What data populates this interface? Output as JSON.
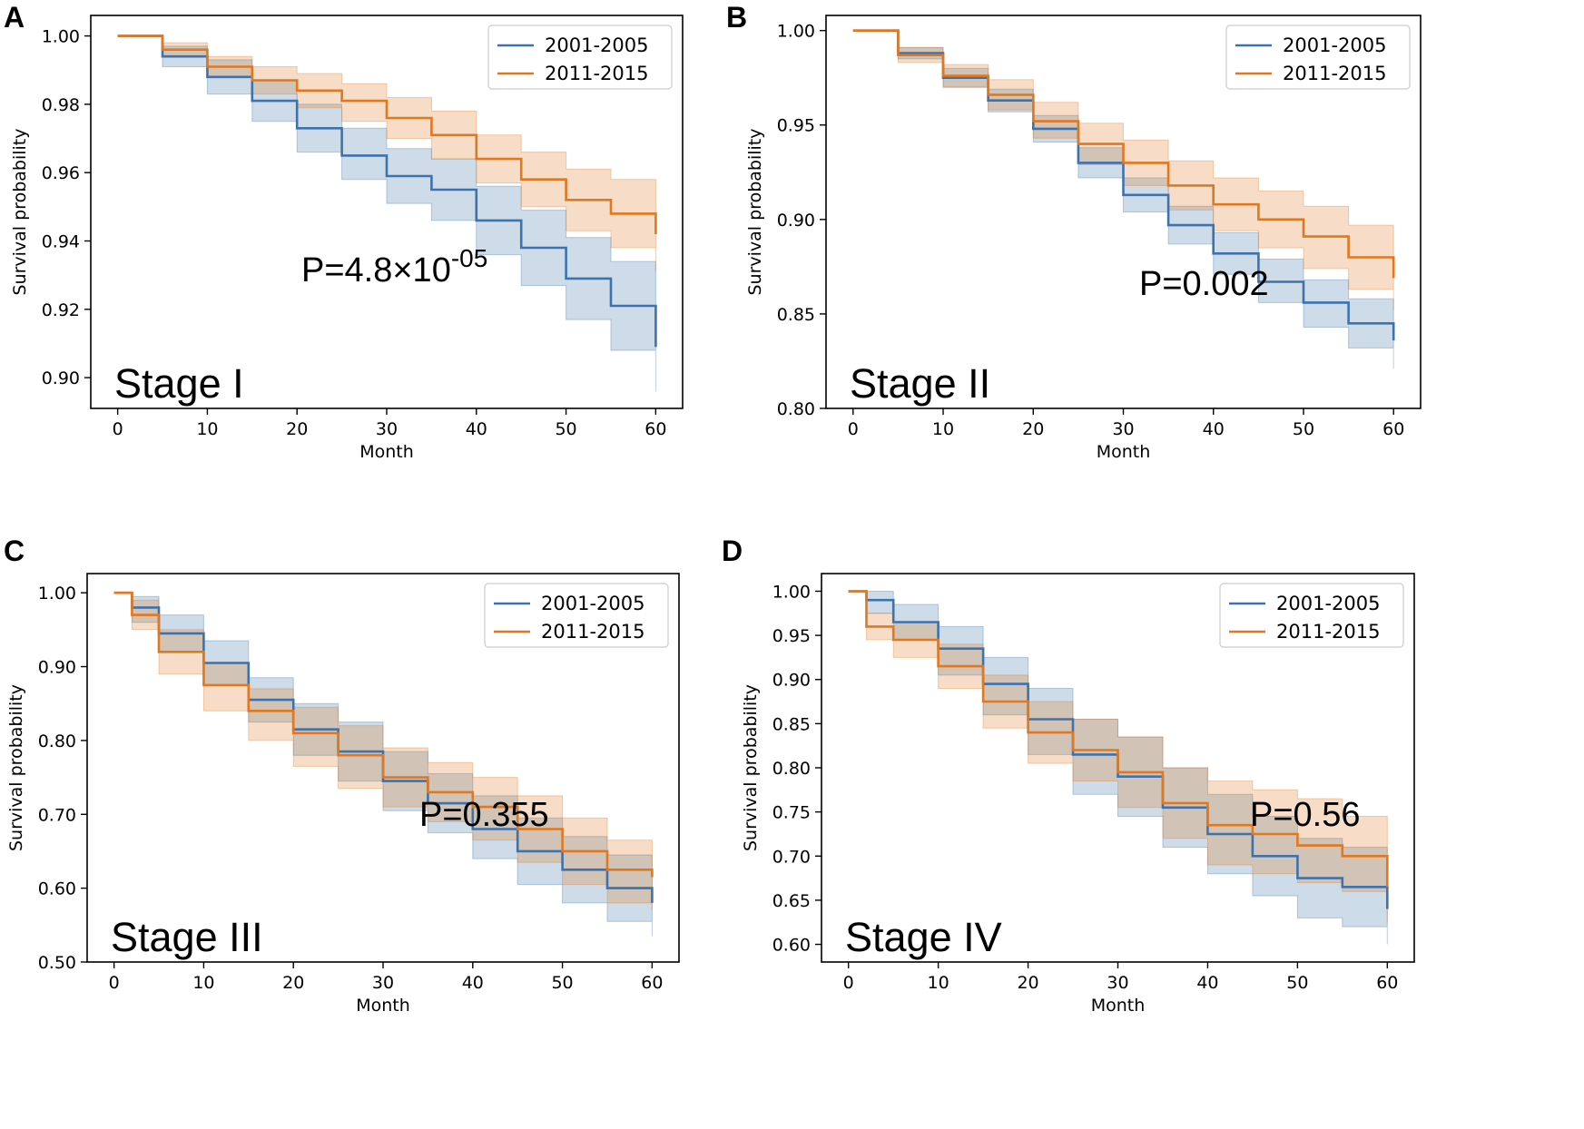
{
  "chart_data": [
    {
      "panel": "A",
      "type": "line",
      "title": "",
      "xlabel": "Month",
      "ylabel": "Survival probability",
      "xlim": [
        -3,
        63
      ],
      "ylim": [
        0.891,
        1.006
      ],
      "xticks": [
        "0",
        "10",
        "20",
        "30",
        "40",
        "50",
        "60"
      ],
      "xtick_values": [
        0,
        10,
        20,
        30,
        40,
        50,
        60
      ],
      "yticks": [
        "0.90",
        "0.92",
        "0.94",
        "0.96",
        "0.98",
        "1.00"
      ],
      "ytick_values": [
        0.9,
        0.92,
        0.94,
        0.96,
        0.98,
        1.0
      ],
      "stage_label": "Stage I",
      "p_main": "P=4.8×10",
      "p_exp": "-05",
      "legend_position": "top-right",
      "x": [
        0,
        5,
        10,
        15,
        20,
        25,
        30,
        35,
        40,
        45,
        50,
        55,
        60
      ],
      "series": [
        {
          "name": "2001-2005",
          "color": "#3d72ad",
          "values": [
            1.0,
            0.994,
            0.988,
            0.981,
            0.973,
            0.965,
            0.959,
            0.955,
            0.946,
            0.938,
            0.929,
            0.921,
            0.909
          ],
          "ci_low": [
            1.0,
            0.991,
            0.983,
            0.975,
            0.966,
            0.958,
            0.951,
            0.946,
            0.936,
            0.927,
            0.917,
            0.908,
            0.896
          ],
          "ci_high": [
            1.0,
            0.997,
            0.993,
            0.987,
            0.98,
            0.973,
            0.967,
            0.964,
            0.956,
            0.949,
            0.941,
            0.934,
            0.922
          ]
        },
        {
          "name": "2011-2015",
          "color": "#e0781f",
          "values": [
            1.0,
            0.996,
            0.991,
            0.987,
            0.984,
            0.981,
            0.976,
            0.971,
            0.964,
            0.958,
            0.952,
            0.948,
            0.942
          ],
          "ci_low": [
            1.0,
            0.994,
            0.988,
            0.983,
            0.979,
            0.975,
            0.97,
            0.964,
            0.957,
            0.95,
            0.943,
            0.938,
            0.931
          ],
          "ci_high": [
            1.0,
            0.998,
            0.994,
            0.991,
            0.989,
            0.986,
            0.982,
            0.978,
            0.971,
            0.966,
            0.961,
            0.958,
            0.953
          ]
        }
      ]
    },
    {
      "panel": "B",
      "type": "line",
      "title": "",
      "xlabel": "Month",
      "ylabel": "Survival probability",
      "xlim": [
        -3,
        63
      ],
      "ylim": [
        0.8,
        1.008
      ],
      "xticks": [
        "0",
        "10",
        "20",
        "30",
        "40",
        "50",
        "60"
      ],
      "xtick_values": [
        0,
        10,
        20,
        30,
        40,
        50,
        60
      ],
      "yticks": [
        "0.80",
        "0.85",
        "0.90",
        "0.95",
        "1.00"
      ],
      "ytick_values": [
        0.8,
        0.85,
        0.9,
        0.95,
        1.0
      ],
      "stage_label": "Stage II",
      "p_main": "P=0.002",
      "p_exp": "",
      "legend_position": "top-right",
      "x": [
        0,
        5,
        10,
        15,
        20,
        25,
        30,
        35,
        40,
        45,
        50,
        55,
        60
      ],
      "series": [
        {
          "name": "2001-2005",
          "color": "#3d72ad",
          "values": [
            1.0,
            0.988,
            0.975,
            0.963,
            0.948,
            0.93,
            0.913,
            0.897,
            0.882,
            0.867,
            0.856,
            0.845,
            0.836
          ],
          "ci_low": [
            1.0,
            0.985,
            0.97,
            0.957,
            0.941,
            0.922,
            0.904,
            0.887,
            0.871,
            0.856,
            0.843,
            0.832,
            0.821
          ],
          "ci_high": [
            1.0,
            0.991,
            0.98,
            0.969,
            0.955,
            0.938,
            0.922,
            0.907,
            0.893,
            0.879,
            0.868,
            0.858,
            0.85
          ]
        },
        {
          "name": "2011-2015",
          "color": "#e0781f",
          "values": [
            1.0,
            0.987,
            0.976,
            0.966,
            0.952,
            0.94,
            0.93,
            0.918,
            0.908,
            0.9,
            0.891,
            0.88,
            0.869
          ],
          "ci_low": [
            1.0,
            0.983,
            0.97,
            0.958,
            0.943,
            0.929,
            0.918,
            0.905,
            0.894,
            0.885,
            0.874,
            0.863,
            0.852
          ],
          "ci_high": [
            1.0,
            0.991,
            0.982,
            0.974,
            0.962,
            0.951,
            0.942,
            0.931,
            0.922,
            0.915,
            0.907,
            0.897,
            0.886
          ]
        }
      ]
    },
    {
      "panel": "C",
      "type": "line",
      "title": "",
      "xlabel": "Month",
      "ylabel": "Survival probability",
      "xlim": [
        -3,
        63
      ],
      "ylim": [
        0.5,
        1.026
      ],
      "xticks": [
        "0",
        "10",
        "20",
        "30",
        "40",
        "50",
        "60"
      ],
      "xtick_values": [
        0,
        10,
        20,
        30,
        40,
        50,
        60
      ],
      "yticks": [
        "0.50",
        "0.60",
        "0.70",
        "0.80",
        "0.90",
        "1.00"
      ],
      "ytick_values": [
        0.5,
        0.6,
        0.7,
        0.8,
        0.9,
        1.0
      ],
      "stage_label": "Stage III",
      "p_main": "P=0.355",
      "p_exp": "",
      "legend_position": "top-right",
      "x": [
        0,
        2,
        5,
        10,
        15,
        20,
        25,
        30,
        35,
        40,
        45,
        50,
        55,
        60
      ],
      "series": [
        {
          "name": "2001-2005",
          "color": "#3d72ad",
          "values": [
            1.0,
            0.98,
            0.945,
            0.905,
            0.855,
            0.815,
            0.785,
            0.745,
            0.715,
            0.68,
            0.65,
            0.625,
            0.6,
            0.58
          ],
          "ci_low": [
            1.0,
            0.96,
            0.92,
            0.875,
            0.825,
            0.78,
            0.745,
            0.705,
            0.675,
            0.64,
            0.605,
            0.58,
            0.555,
            0.535
          ],
          "ci_high": [
            1.0,
            0.995,
            0.97,
            0.935,
            0.885,
            0.85,
            0.825,
            0.785,
            0.755,
            0.725,
            0.695,
            0.67,
            0.645,
            0.625
          ]
        },
        {
          "name": "2011-2015",
          "color": "#e0781f",
          "values": [
            1.0,
            0.97,
            0.92,
            0.875,
            0.84,
            0.81,
            0.78,
            0.75,
            0.73,
            0.71,
            0.68,
            0.65,
            0.625,
            0.615
          ],
          "ci_low": [
            1.0,
            0.95,
            0.89,
            0.84,
            0.8,
            0.765,
            0.735,
            0.71,
            0.69,
            0.665,
            0.635,
            0.605,
            0.58,
            0.57
          ],
          "ci_high": [
            1.0,
            0.99,
            0.95,
            0.905,
            0.87,
            0.845,
            0.82,
            0.79,
            0.77,
            0.75,
            0.725,
            0.695,
            0.665,
            0.66
          ]
        }
      ]
    },
    {
      "panel": "D",
      "type": "line",
      "title": "",
      "xlabel": "Month",
      "ylabel": "Survival probability",
      "xlim": [
        -3,
        63
      ],
      "ylim": [
        0.58,
        1.02
      ],
      "xticks": [
        "0",
        "10",
        "20",
        "30",
        "40",
        "50",
        "60"
      ],
      "xtick_values": [
        0,
        10,
        20,
        30,
        40,
        50,
        60
      ],
      "yticks": [
        "0.60",
        "0.65",
        "0.70",
        "0.75",
        "0.80",
        "0.85",
        "0.90",
        "0.95",
        "1.00"
      ],
      "ytick_values": [
        0.6,
        0.65,
        0.7,
        0.75,
        0.8,
        0.85,
        0.9,
        0.95,
        1.0
      ],
      "stage_label": "Stage IV",
      "p_main": "P=0.56",
      "p_exp": "",
      "legend_position": "top-right",
      "x": [
        0,
        2,
        5,
        10,
        15,
        20,
        25,
        30,
        35,
        40,
        45,
        50,
        55,
        60
      ],
      "series": [
        {
          "name": "2001-2005",
          "color": "#3d72ad",
          "values": [
            1.0,
            0.99,
            0.965,
            0.935,
            0.895,
            0.855,
            0.815,
            0.79,
            0.755,
            0.725,
            0.7,
            0.675,
            0.665,
            0.64
          ],
          "ci_low": [
            1.0,
            0.975,
            0.945,
            0.905,
            0.86,
            0.815,
            0.77,
            0.745,
            0.71,
            0.68,
            0.655,
            0.63,
            0.62,
            0.6
          ],
          "ci_high": [
            1.0,
            1.0,
            0.985,
            0.96,
            0.925,
            0.89,
            0.855,
            0.835,
            0.8,
            0.77,
            0.745,
            0.72,
            0.71,
            0.685
          ]
        },
        {
          "name": "2011-2015",
          "color": "#e0781f",
          "values": [
            1.0,
            0.96,
            0.945,
            0.915,
            0.875,
            0.84,
            0.82,
            0.795,
            0.76,
            0.735,
            0.725,
            0.712,
            0.7,
            0.665
          ],
          "ci_low": [
            1.0,
            0.945,
            0.925,
            0.89,
            0.845,
            0.805,
            0.785,
            0.755,
            0.72,
            0.69,
            0.68,
            0.67,
            0.66,
            0.625
          ],
          "ci_high": [
            1.0,
            0.975,
            0.965,
            0.94,
            0.905,
            0.875,
            0.855,
            0.835,
            0.8,
            0.785,
            0.775,
            0.765,
            0.745,
            0.71
          ]
        }
      ]
    }
  ]
}
